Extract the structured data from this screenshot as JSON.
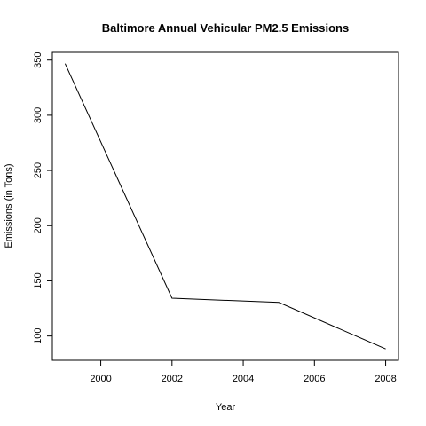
{
  "chart_data": {
    "type": "line",
    "title": "Baltimore Annual Vehicular PM2.5 Emissions",
    "xlabel": "Year",
    "ylabel": "Emissions (in Tons)",
    "x": [
      1999,
      2002,
      2005,
      2008
    ],
    "series": [
      {
        "values": [
          346.8,
          134.3,
          130.4,
          88.3
        ]
      }
    ],
    "xlim": [
      1998.64,
      2008.36
    ],
    "ylim": [
      78.0,
      357.0
    ],
    "xticks": [
      2000,
      2002,
      2004,
      2006,
      2008
    ],
    "xtick_labels": [
      "2000",
      "2002",
      "2004",
      "2006",
      "2008"
    ],
    "yticks": [
      100,
      150,
      200,
      250,
      300,
      350
    ],
    "ytick_labels": [
      "100",
      "150",
      "200",
      "250",
      "300",
      "350"
    ],
    "grid": false,
    "legend": "none",
    "line_color": "#000000"
  }
}
